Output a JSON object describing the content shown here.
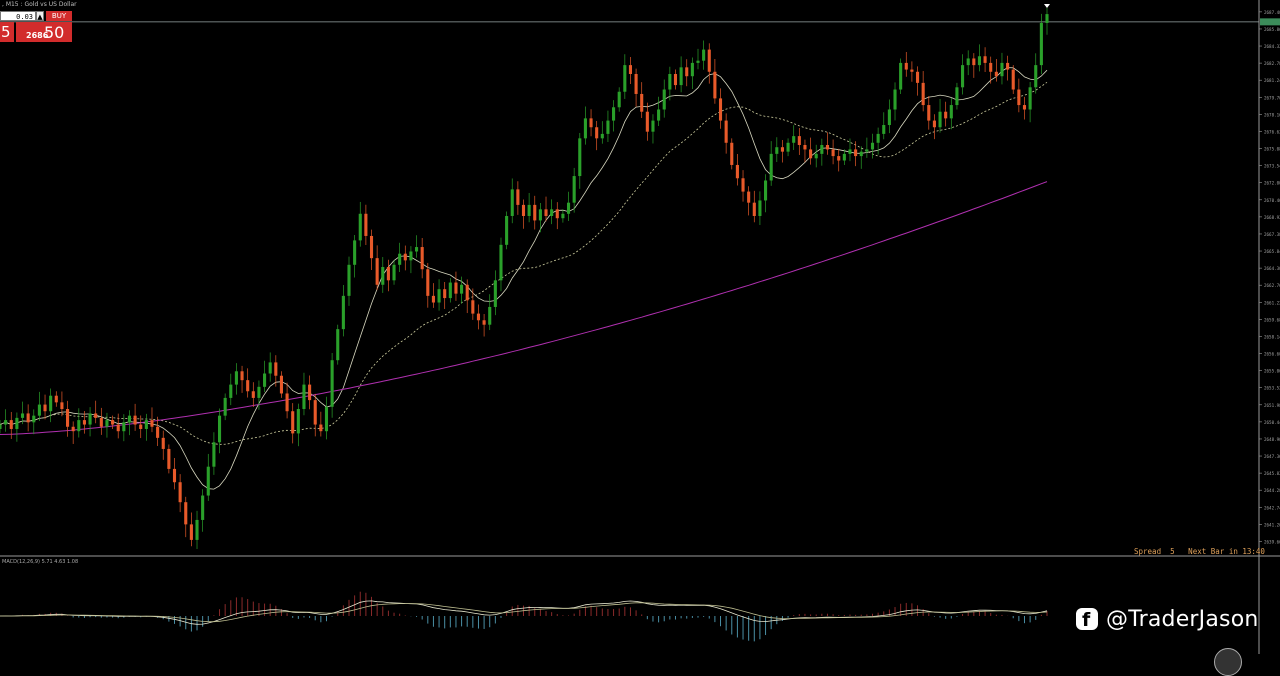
{
  "header": {
    "title": ", M15 : Gold vs US Dollar"
  },
  "trade_panel": {
    "lot_value": "0.03",
    "spin_glyph": "▲",
    "buy_label": "BUY",
    "sell_price_tail": "5",
    "buy_price_small": "2686",
    "buy_price_big": "50"
  },
  "status": {
    "text": "Spread  5   Next Bar in 13:40"
  },
  "indicator": {
    "label": "MACD(12,26,9) 5.71 4.63 1.08"
  },
  "watermark": {
    "icon": "facebook-icon",
    "handle": "@TraderJason"
  },
  "colors": {
    "bull": "#2aa02a",
    "bear": "#e85a2a",
    "ma_fast": "#d8d8c0",
    "ma_slow": "#cfcfa0",
    "ma_long": "#b030b0",
    "hist_pos": "#8a2a2a",
    "hist_neg": "#4a8fa5"
  },
  "chart_data": {
    "type": "candlestick",
    "symbol_label": "Gold vs US Dollar",
    "ylim": [
      2638.8,
      2688.2
    ],
    "current_price": 2686.5,
    "price_ticks": [
      "2687.40",
      "2685.86",
      "2684.32",
      "2682.78",
      "2681.24",
      "2679.70",
      "2678.16",
      "2676.62",
      "2675.08",
      "2673.54",
      "2672.00",
      "2670.46",
      "2668.92",
      "2667.38",
      "2665.84",
      "2664.30",
      "2662.76",
      "2661.22",
      "2659.68",
      "2658.14",
      "2656.60",
      "2655.06",
      "2653.52",
      "2651.98",
      "2650.44",
      "2648.90",
      "2647.36",
      "2645.82",
      "2644.28",
      "2642.74",
      "2641.20",
      "2639.66"
    ],
    "series_close": [
      2650.2,
      2650.6,
      2649.8,
      2650.8,
      2651.2,
      2650.4,
      2651.0,
      2652.0,
      2651.4,
      2652.8,
      2652.2,
      2651.6,
      2650.0,
      2649.6,
      2650.6,
      2650.2,
      2651.2,
      2650.8,
      2650.0,
      2650.6,
      2650.2,
      2649.6,
      2650.4,
      2651.0,
      2650.2,
      2649.8,
      2650.6,
      2650.0,
      2649.0,
      2648.0,
      2646.2,
      2645.0,
      2643.2,
      2641.2,
      2639.8,
      2641.6,
      2643.8,
      2646.4,
      2648.6,
      2651.0,
      2652.6,
      2653.8,
      2655.0,
      2654.2,
      2653.2,
      2652.6,
      2653.6,
      2654.8,
      2655.8,
      2654.6,
      2653.0,
      2651.4,
      2649.4,
      2651.6,
      2653.8,
      2652.4,
      2650.2,
      2649.6,
      2651.8,
      2656.0,
      2658.8,
      2661.8,
      2664.6,
      2666.8,
      2669.2,
      2667.2,
      2665.2,
      2662.8,
      2664.4,
      2663.2,
      2664.6,
      2665.6,
      2665.0,
      2665.8,
      2666.2,
      2664.2,
      2661.8,
      2661.2,
      2662.4,
      2661.6,
      2663.0,
      2662.0,
      2662.8,
      2661.4,
      2660.2,
      2659.6,
      2659.2,
      2660.8,
      2663.2,
      2666.4,
      2669.0,
      2671.4,
      2670.0,
      2669.0,
      2670.0,
      2668.6,
      2669.6,
      2669.0,
      2669.6,
      2668.8,
      2669.2,
      2670.2,
      2672.6,
      2676.0,
      2677.8,
      2677.0,
      2676.0,
      2676.4,
      2677.6,
      2678.8,
      2680.2,
      2682.6,
      2681.8,
      2680.0,
      2678.4,
      2676.6,
      2677.6,
      2678.6,
      2680.4,
      2681.8,
      2680.8,
      2682.4,
      2681.6,
      2682.8,
      2683.0,
      2684.0,
      2682.0,
      2679.6,
      2677.6,
      2675.6,
      2673.6,
      2672.4,
      2671.2,
      2670.2,
      2669.0,
      2670.4,
      2672.2,
      2674.6,
      2675.2,
      2674.8,
      2675.6,
      2676.2,
      2675.4,
      2675.0,
      2674.2,
      2674.6,
      2675.4,
      2675.0,
      2674.4,
      2674.0,
      2674.6,
      2675.0,
      2674.4,
      2674.8,
      2675.0,
      2675.6,
      2676.4,
      2677.2,
      2678.6,
      2680.4,
      2682.8,
      2682.2,
      2682.0,
      2681.0,
      2679.0,
      2677.6,
      2677.0,
      2678.4,
      2677.8,
      2679.0,
      2680.6,
      2682.6,
      2683.2,
      2682.6,
      2683.4,
      2682.8,
      2682.0,
      2681.6,
      2682.8,
      2682.2,
      2680.4,
      2679.0,
      2678.6,
      2680.6,
      2682.6,
      2686.4,
      2687.2
    ]
  }
}
